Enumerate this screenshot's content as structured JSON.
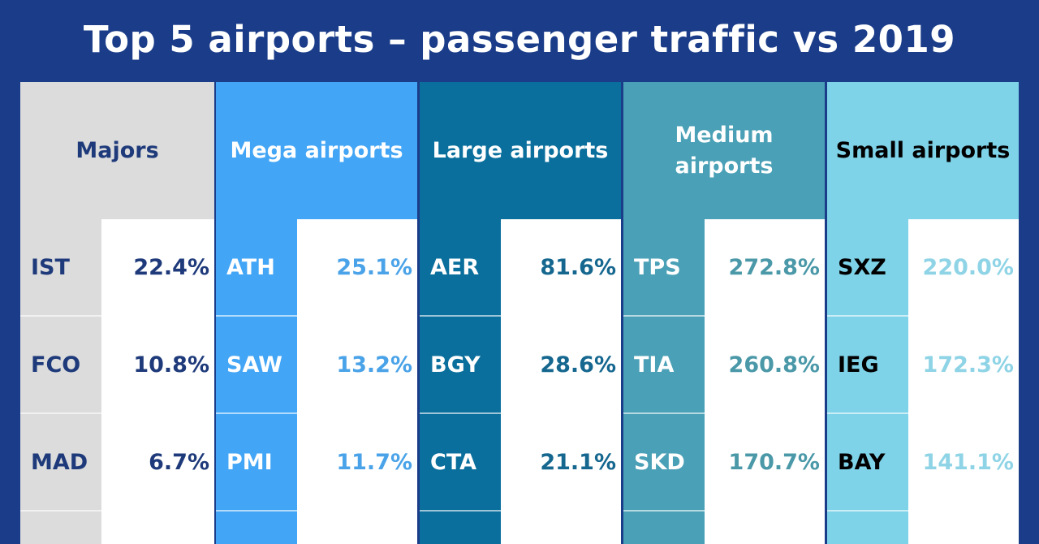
{
  "title": "Top 5 airports – passenger traffic vs 2019",
  "chart_data": {
    "type": "table",
    "title": "Top 5 airports – passenger traffic vs 2019",
    "groups": [
      {
        "name": "Majors",
        "color": "#dcdcdc",
        "head_text": "#1e3a7a",
        "val_text": "#1e3a7a",
        "code_text": "#1e3a7a",
        "rows": [
          {
            "code": "IST",
            "value": "22.4%"
          },
          {
            "code": "FCO",
            "value": "10.8%"
          },
          {
            "code": "MAD",
            "value": "6.7%"
          }
        ]
      },
      {
        "name": "Mega airports",
        "color": "#42a5f5",
        "head_text": "#ffffff",
        "val_text": "#4aa3e8",
        "code_text": "#ffffff",
        "rows": [
          {
            "code": "ATH",
            "value": "25.1%"
          },
          {
            "code": "SAW",
            "value": "13.2%"
          },
          {
            "code": "PMI",
            "value": "11.7%"
          }
        ]
      },
      {
        "name": "Large airports",
        "color": "#0a6f9c",
        "head_text": "#ffffff",
        "val_text": "#15678f",
        "code_text": "#ffffff",
        "rows": [
          {
            "code": "AER",
            "value": "81.6%"
          },
          {
            "code": "BGY",
            "value": "28.6%"
          },
          {
            "code": "CTA",
            "value": "21.1%"
          }
        ]
      },
      {
        "name": "Medium airports",
        "color": "#4aa0b6",
        "head_text": "#ffffff",
        "val_text": "#4a98a8",
        "code_text": "#ffffff",
        "rows": [
          {
            "code": "TPS",
            "value": "272.8%"
          },
          {
            "code": "TIA",
            "value": "260.8%"
          },
          {
            "code": "SKD",
            "value": "170.7%"
          }
        ]
      },
      {
        "name": "Small airports",
        "color": "#7ed3e8",
        "head_text": "#000000",
        "val_text": "#8fd4e6",
        "code_text": "#000000",
        "rows": [
          {
            "code": "SXZ",
            "value": "220.0%"
          },
          {
            "code": "IEG",
            "value": "172.3%"
          },
          {
            "code": "BAY",
            "value": "141.1%"
          }
        ]
      }
    ]
  }
}
